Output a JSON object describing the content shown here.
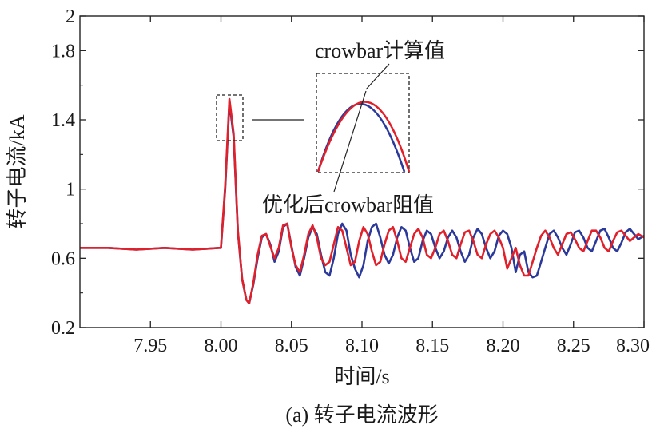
{
  "chart_data": {
    "type": "line",
    "title": "",
    "caption": "(a) 转子电流波形",
    "xlabel": "时间/s",
    "ylabel": "转子电流/kA",
    "xlim": [
      7.9,
      8.3
    ],
    "ylim": [
      0.2,
      2.0
    ],
    "xticks": [
      7.95,
      8.0,
      8.05,
      8.1,
      8.15,
      8.2,
      8.25,
      8.3
    ],
    "xtick_labels": [
      "7.95",
      "8.00",
      "8.05",
      "8.10",
      "8.15",
      "8.20",
      "8.25",
      "8.30"
    ],
    "yticks": [
      0.2,
      0.6,
      1.0,
      1.4,
      1.8,
      2.0
    ],
    "ytick_labels": [
      "0.2",
      "0.6",
      "1",
      "1.4",
      "1.8",
      "2"
    ],
    "grid": false,
    "annotations": [
      "crowbar计算值",
      "优化后crowbar阻值"
    ],
    "series": [
      {
        "color": "#2b3a9a",
        "x": [
          7.9,
          7.92,
          7.94,
          7.96,
          7.98,
          7.999,
          8.0,
          8.003,
          8.006,
          8.009,
          8.012,
          8.015,
          8.018,
          8.02,
          8.023,
          8.026,
          8.029,
          8.032,
          8.035,
          8.038,
          8.041,
          8.044,
          8.047,
          8.05,
          8.053,
          8.056,
          8.059,
          8.062,
          8.065,
          8.068,
          8.071,
          8.074,
          8.077,
          8.08,
          8.083,
          8.086,
          8.089,
          8.092,
          8.095,
          8.098,
          8.101,
          8.104,
          8.107,
          8.11,
          8.113,
          8.116,
          8.119,
          8.122,
          8.125,
          8.128,
          8.131,
          8.134,
          8.137,
          8.14,
          8.143,
          8.146,
          8.149,
          8.152,
          8.155,
          8.158,
          8.161,
          8.164,
          8.167,
          8.17,
          8.173,
          8.176,
          8.179,
          8.182,
          8.185,
          8.188,
          8.191,
          8.194,
          8.197,
          8.2,
          8.203,
          8.206,
          8.209,
          8.212,
          8.215,
          8.218,
          8.221,
          8.224,
          8.227,
          8.23,
          8.233,
          8.236,
          8.239,
          8.242,
          8.245,
          8.248,
          8.251,
          8.254,
          8.257,
          8.26,
          8.263,
          8.266,
          8.269,
          8.272,
          8.275,
          8.278,
          8.281,
          8.284,
          8.287,
          8.29,
          8.293,
          8.296,
          8.3
        ],
        "values": [
          0.66,
          0.66,
          0.65,
          0.66,
          0.65,
          0.66,
          0.66,
          1.0,
          1.5,
          1.3,
          0.75,
          0.48,
          0.36,
          0.34,
          0.45,
          0.6,
          0.72,
          0.74,
          0.68,
          0.58,
          0.64,
          0.78,
          0.8,
          0.67,
          0.55,
          0.5,
          0.6,
          0.72,
          0.78,
          0.74,
          0.62,
          0.52,
          0.5,
          0.6,
          0.74,
          0.8,
          0.76,
          0.62,
          0.54,
          0.49,
          0.56,
          0.7,
          0.78,
          0.8,
          0.72,
          0.62,
          0.57,
          0.62,
          0.72,
          0.78,
          0.76,
          0.66,
          0.58,
          0.6,
          0.7,
          0.76,
          0.74,
          0.66,
          0.6,
          0.64,
          0.72,
          0.76,
          0.72,
          0.64,
          0.58,
          0.62,
          0.72,
          0.77,
          0.74,
          0.66,
          0.6,
          0.64,
          0.73,
          0.76,
          0.74,
          0.66,
          0.52,
          0.62,
          0.64,
          0.52,
          0.49,
          0.5,
          0.58,
          0.66,
          0.74,
          0.76,
          0.72,
          0.66,
          0.62,
          0.68,
          0.75,
          0.76,
          0.72,
          0.66,
          0.64,
          0.7,
          0.76,
          0.77,
          0.72,
          0.66,
          0.64,
          0.69,
          0.75,
          0.77,
          0.74,
          0.71,
          0.73
        ]
      },
      {
        "color": "#e0202a",
        "x": [
          7.9,
          7.92,
          7.94,
          7.96,
          7.98,
          7.999,
          8.0,
          8.003,
          8.006,
          8.009,
          8.012,
          8.015,
          8.018,
          8.02,
          8.023,
          8.026,
          8.029,
          8.032,
          8.035,
          8.038,
          8.041,
          8.044,
          8.047,
          8.05,
          8.053,
          8.056,
          8.059,
          8.062,
          8.065,
          8.068,
          8.071,
          8.074,
          8.077,
          8.08,
          8.083,
          8.086,
          8.089,
          8.092,
          8.095,
          8.098,
          8.101,
          8.104,
          8.107,
          8.11,
          8.113,
          8.116,
          8.119,
          8.122,
          8.125,
          8.128,
          8.131,
          8.134,
          8.137,
          8.14,
          8.143,
          8.146,
          8.149,
          8.152,
          8.155,
          8.158,
          8.161,
          8.164,
          8.167,
          8.17,
          8.173,
          8.176,
          8.179,
          8.182,
          8.185,
          8.188,
          8.191,
          8.194,
          8.197,
          8.2,
          8.203,
          8.206,
          8.209,
          8.212,
          8.215,
          8.218,
          8.221,
          8.224,
          8.227,
          8.23,
          8.233,
          8.236,
          8.239,
          8.242,
          8.245,
          8.248,
          8.251,
          8.254,
          8.257,
          8.26,
          8.263,
          8.266,
          8.269,
          8.272,
          8.275,
          8.278,
          8.281,
          8.284,
          8.287,
          8.29,
          8.293,
          8.296,
          8.3
        ],
        "values": [
          0.66,
          0.66,
          0.65,
          0.66,
          0.65,
          0.66,
          0.66,
          1.02,
          1.52,
          1.32,
          0.76,
          0.48,
          0.36,
          0.34,
          0.46,
          0.62,
          0.73,
          0.74,
          0.67,
          0.6,
          0.66,
          0.79,
          0.8,
          0.66,
          0.56,
          0.52,
          0.62,
          0.74,
          0.79,
          0.72,
          0.6,
          0.56,
          0.58,
          0.68,
          0.78,
          0.76,
          0.66,
          0.56,
          0.58,
          0.7,
          0.78,
          0.74,
          0.64,
          0.56,
          0.58,
          0.68,
          0.76,
          0.78,
          0.7,
          0.6,
          0.58,
          0.66,
          0.74,
          0.77,
          0.72,
          0.62,
          0.6,
          0.66,
          0.74,
          0.76,
          0.7,
          0.62,
          0.6,
          0.68,
          0.75,
          0.76,
          0.7,
          0.62,
          0.6,
          0.68,
          0.74,
          0.76,
          0.72,
          0.66,
          0.54,
          0.6,
          0.66,
          0.56,
          0.5,
          0.5,
          0.58,
          0.66,
          0.73,
          0.76,
          0.72,
          0.66,
          0.62,
          0.68,
          0.74,
          0.75,
          0.71,
          0.66,
          0.64,
          0.7,
          0.76,
          0.76,
          0.72,
          0.66,
          0.64,
          0.7,
          0.75,
          0.76,
          0.73,
          0.7,
          0.72,
          0.74,
          0.72
        ]
      }
    ]
  }
}
